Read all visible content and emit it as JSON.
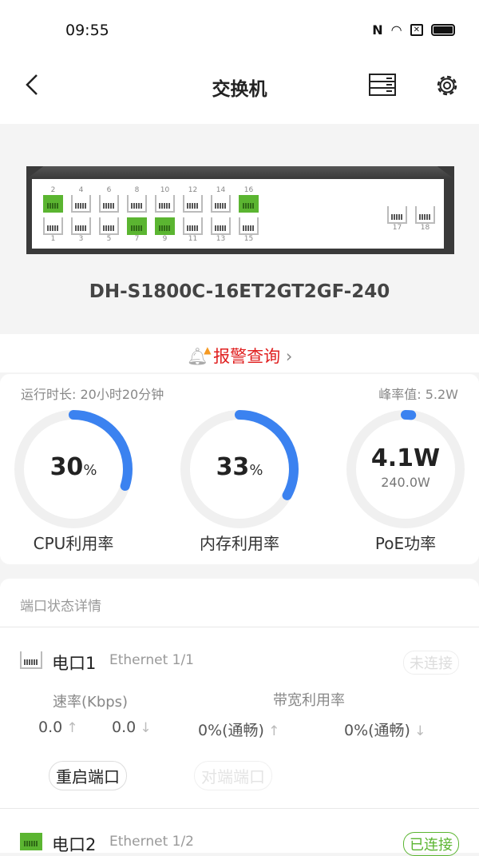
{
  "status_bar": {
    "time": "09:55",
    "icons": [
      "nfc-icon",
      "wifi-icon",
      "sim-off-icon",
      "battery-icon"
    ]
  },
  "header": {
    "title": "交换机",
    "back_icon": "chevron-left-icon",
    "list_icon": "device-list-icon",
    "settings_icon": "gear-icon"
  },
  "device": {
    "model": "DH-S1800C-16ET2GT2GF-240",
    "ports_top": [
      {
        "n": "2",
        "on": true
      },
      {
        "n": "4",
        "on": false
      },
      {
        "n": "6",
        "on": false
      },
      {
        "n": "8",
        "on": false
      },
      {
        "n": "10",
        "on": false
      },
      {
        "n": "12",
        "on": false
      },
      {
        "n": "14",
        "on": false
      },
      {
        "n": "16",
        "on": true
      }
    ],
    "ports_bottom": [
      {
        "n": "1",
        "on": false
      },
      {
        "n": "3",
        "on": false
      },
      {
        "n": "5",
        "on": false
      },
      {
        "n": "7",
        "on": true
      },
      {
        "n": "9",
        "on": true
      },
      {
        "n": "11",
        "on": false
      },
      {
        "n": "13",
        "on": false
      },
      {
        "n": "15",
        "on": false
      }
    ],
    "ports_uplink": [
      {
        "n": "17",
        "on": false
      },
      {
        "n": "18",
        "on": false
      }
    ]
  },
  "alarm": {
    "label": "报警查询",
    "color": "#e02020"
  },
  "stats": {
    "uptime": "运行时长: 20小时20分钟",
    "peak": "峰率值: 5.2W",
    "gauges": [
      {
        "label": "CPU利用率",
        "value": "30",
        "unit": "%",
        "fraction": 0.3
      },
      {
        "label": "内存利用率",
        "value": "33",
        "unit": "%",
        "fraction": 0.33
      },
      {
        "label": "PoE功率",
        "value": "4.1W",
        "sub": "240.0W",
        "fraction": 0.017
      }
    ],
    "accent": "#3b82f0"
  },
  "ports_section": {
    "title": "端口状态详情",
    "rate_label": "速率(Kbps)",
    "bw_label": "带宽利用率",
    "items": [
      {
        "name": "电口1",
        "eth": "Ethernet 1/1",
        "status": "未连接",
        "connected": false,
        "up": "0.0",
        "down": "0.0",
        "bw_up": "0%(通畅)",
        "bw_down": "0%(通畅)",
        "restart": "重启端口",
        "peer": "对端端口"
      },
      {
        "name": "电口2",
        "eth": "Ethernet 1/2",
        "status": "已连接",
        "connected": true
      }
    ]
  }
}
